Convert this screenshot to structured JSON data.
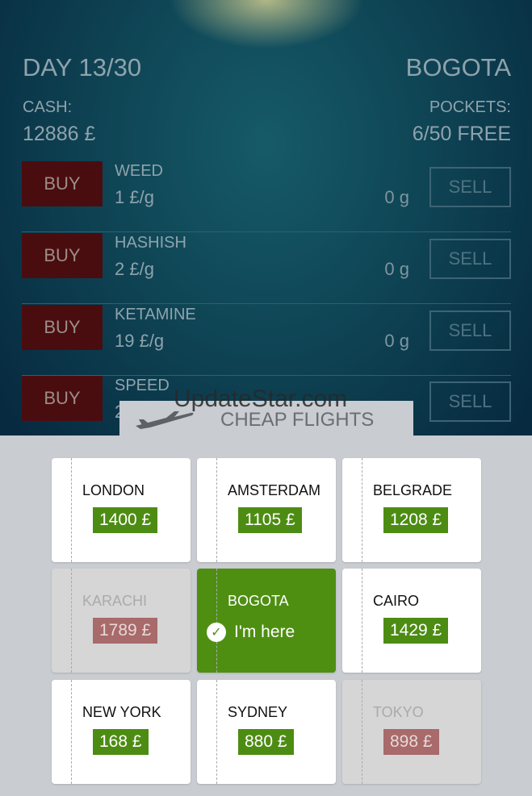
{
  "header": {
    "day": "DAY 13/30",
    "city": "BOGOTA",
    "cash_label": "CASH:",
    "cash_value": "12886 £",
    "pockets_label": "POCKETS:",
    "pockets_value": "6/50 FREE"
  },
  "market": [
    {
      "buy": "BUY",
      "name": "WEED",
      "price": "1 £/g",
      "qty": "0 g",
      "sell": "SELL"
    },
    {
      "buy": "BUY",
      "name": "HASHISH",
      "price": "2 £/g",
      "qty": "0 g",
      "sell": "SELL"
    },
    {
      "buy": "BUY",
      "name": "KETAMINE",
      "price": "19 £/g",
      "qty": "0 g",
      "sell": "SELL"
    },
    {
      "buy": "BUY",
      "name": "SPEED",
      "price": "2",
      "qty": "",
      "sell": "SELL"
    }
  ],
  "flights": {
    "title": "CHEAP FLIGHTS",
    "here_label": "I'm here",
    "cities": [
      {
        "name": "LONDON",
        "price": "1400 £",
        "state": "available"
      },
      {
        "name": "AMSTERDAM",
        "price": "1105 £",
        "state": "available"
      },
      {
        "name": "BELGRADE",
        "price": "1208 £",
        "state": "available"
      },
      {
        "name": "KARACHI",
        "price": "1789 £",
        "state": "unaffordable"
      },
      {
        "name": "BOGOTA",
        "price": "",
        "state": "current"
      },
      {
        "name": "CAIRO",
        "price": "1429 £",
        "state": "available"
      },
      {
        "name": "NEW YORK",
        "price": "168 £",
        "state": "available"
      },
      {
        "name": "SYDNEY",
        "price": "880 £",
        "state": "available"
      },
      {
        "name": "TOKYO",
        "price": "898 £",
        "state": "unaffordable"
      }
    ]
  },
  "watermark": "UpdateStar.com",
  "colors": {
    "buy": "#4a0d0f",
    "price_ok": "#4d8c13",
    "price_off": "#a86a6a",
    "current": "#4e8f12"
  }
}
